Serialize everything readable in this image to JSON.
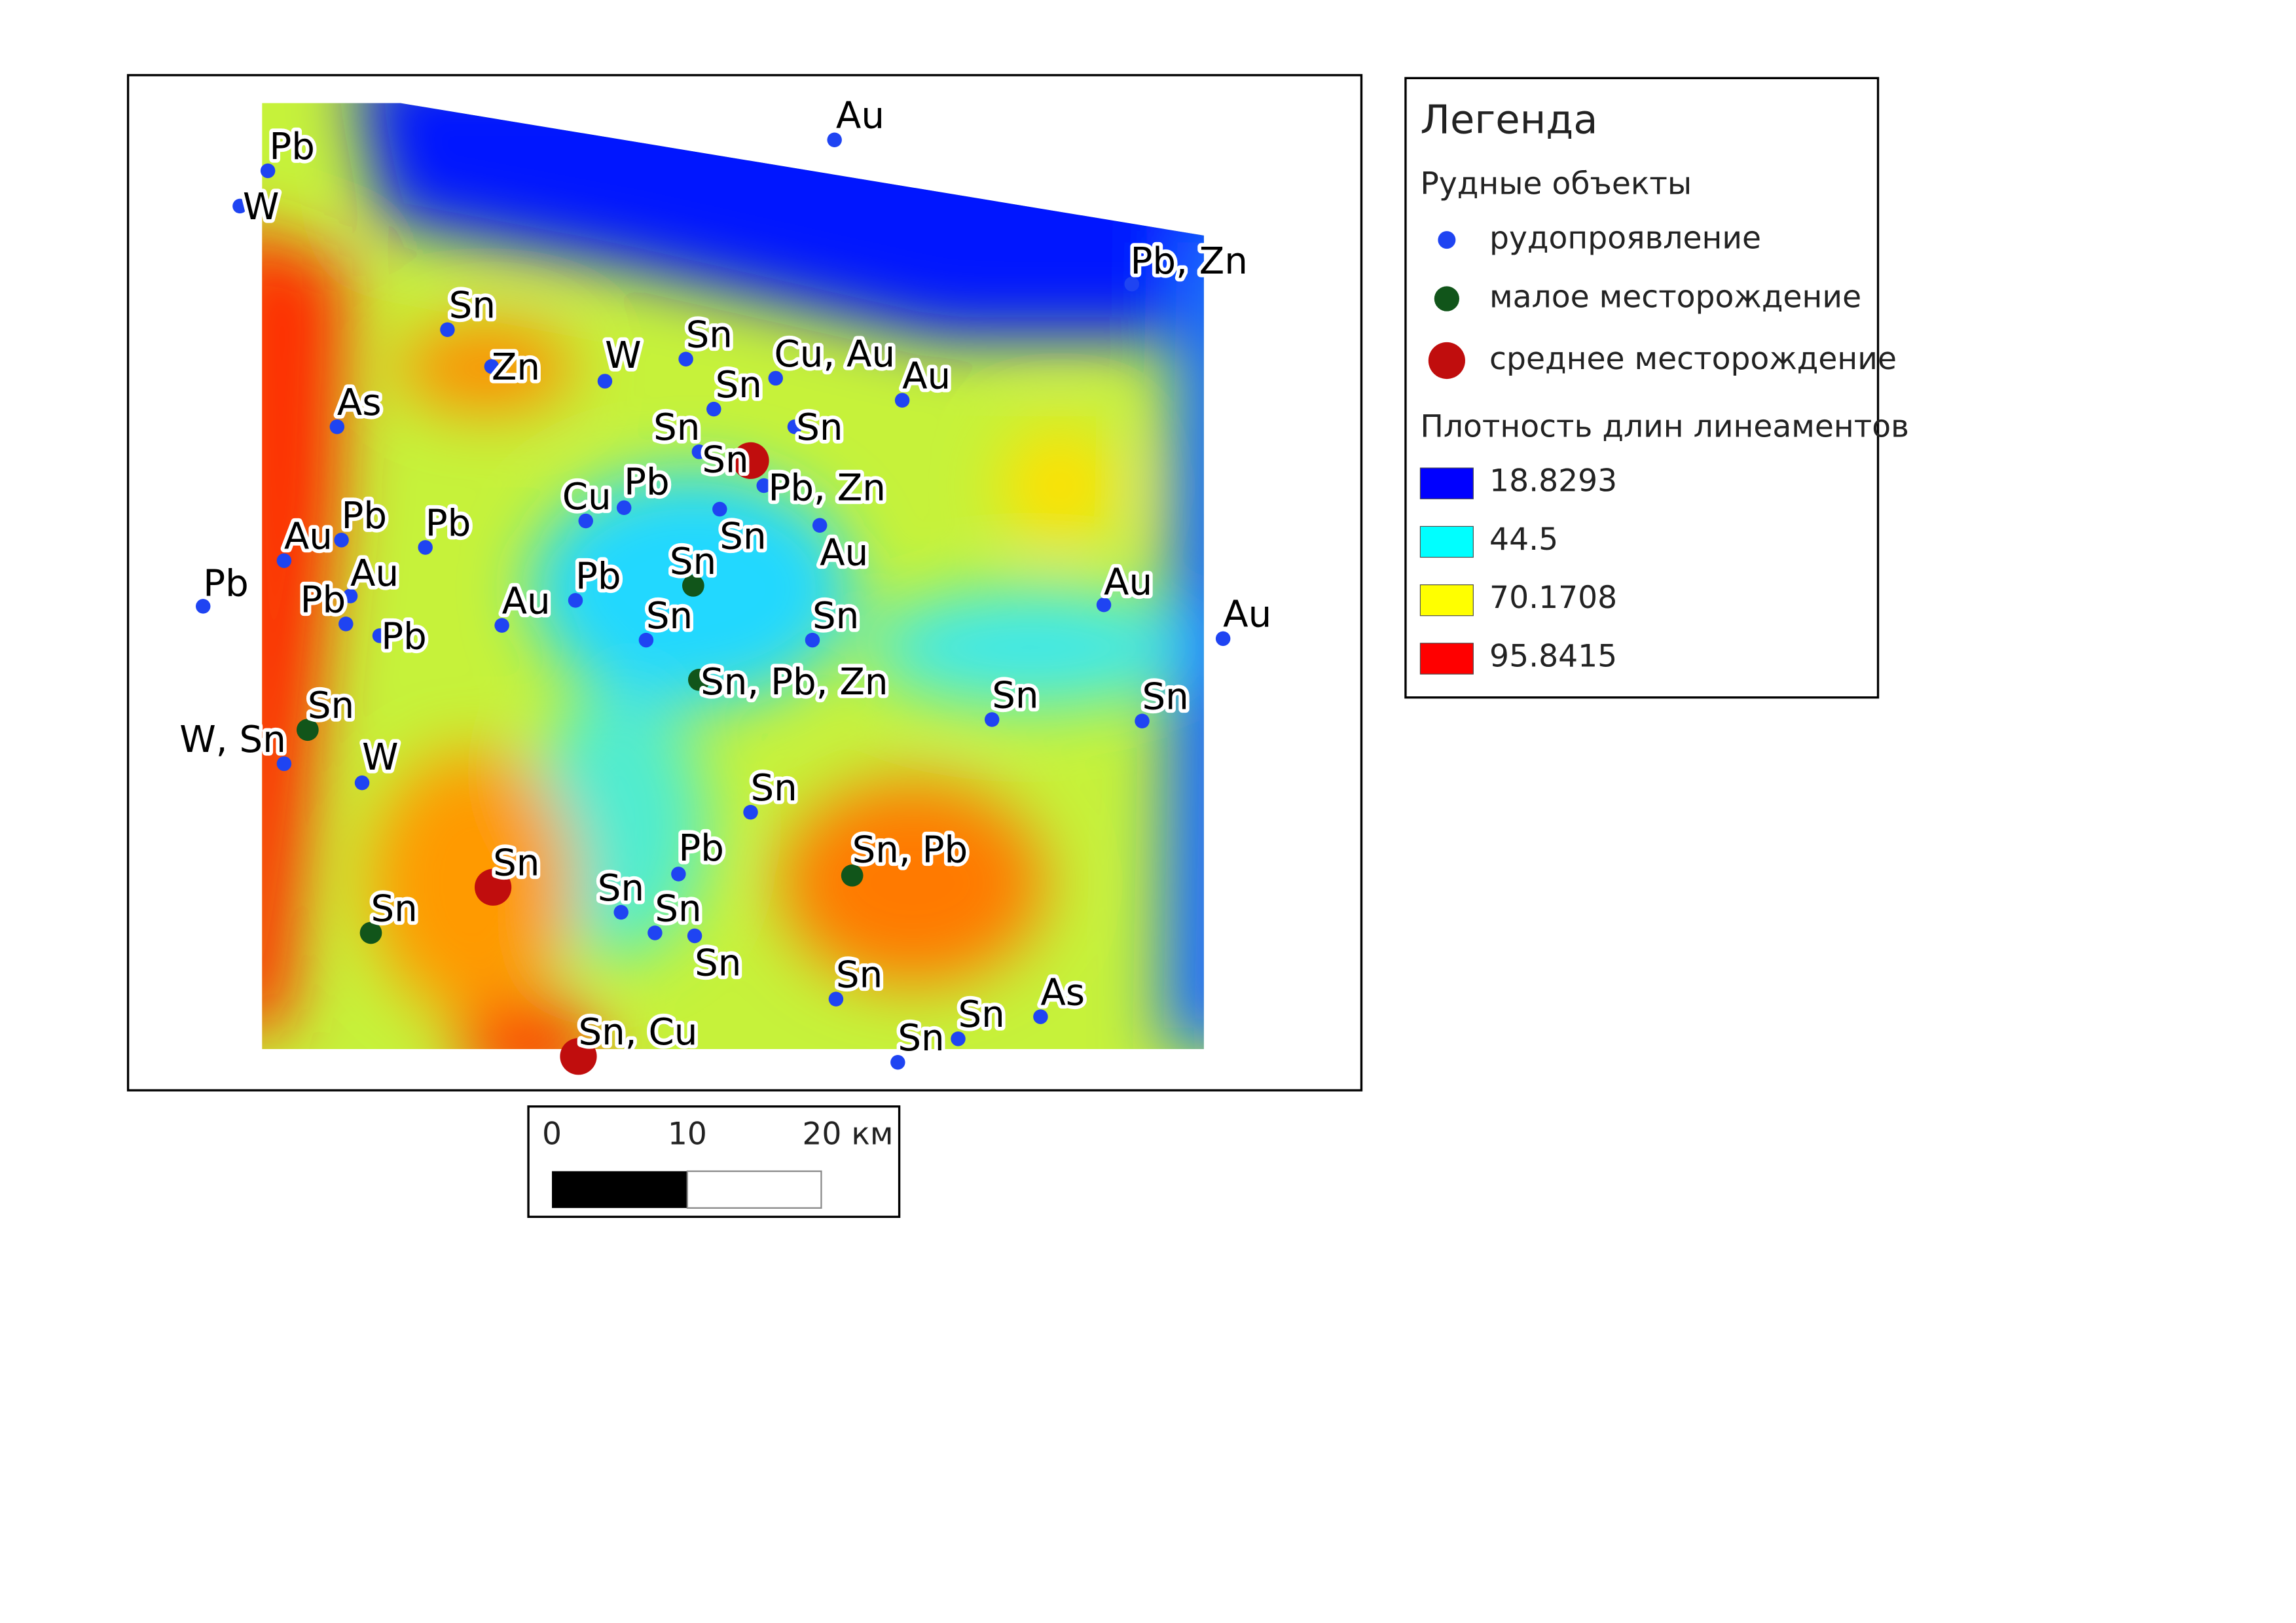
{
  "map": {
    "points": [
      [
        "Au",
        "Pb",
        "W",
        "Pb, Zn",
        "Sn",
        "Zn",
        "W",
        "Sn",
        "Cu, Au",
        "Au",
        "Sn",
        "As",
        "Sn",
        "Sn",
        "Pb, Zn",
        "Cu",
        "Pb",
        "Sn",
        "Au",
        "Au",
        "Pb",
        "Pb",
        "Pb",
        "Au",
        "Pb",
        "Pb",
        "Pb",
        "Au",
        "Sn",
        "Sn",
        "Au",
        "Au",
        "Sn",
        "Sn",
        "W, Sn",
        "W",
        "Sn",
        "Pb",
        "Sn",
        "Sn",
        "Sn",
        "Sn",
        "Sn",
        "As",
        "Sn"
      ],
      [
        "Sn",
        "Sn, Pb, Zn",
        "Sn",
        "Sn, Pb",
        "Sn"
      ],
      [
        "Sn",
        "Sn",
        "Sn, Cu"
      ]
    ]
  },
  "legend": {
    "title": "Легенда",
    "ore_heading": "Рудные объекты",
    "ore_classes": [
      {
        "label": "рудопроявление",
        "color": "#1f44f2"
      },
      {
        "label": "малое месторождение",
        "color": "#11551a"
      },
      {
        "label": "среднее месторождение",
        "color": "#c00d0d"
      }
    ],
    "density_heading": "Плотность длин линеаментов",
    "density_classes": [
      {
        "label": "18.8293",
        "color": "#0000ff"
      },
      {
        "label": "44.5",
        "color": "#00ffff"
      },
      {
        "label": "70.1708",
        "color": "#ffff00"
      },
      {
        "label": "95.8415",
        "color": "#ff0000"
      }
    ]
  },
  "scale_bar": {
    "labels": [
      "0",
      "10",
      "20 км"
    ]
  }
}
